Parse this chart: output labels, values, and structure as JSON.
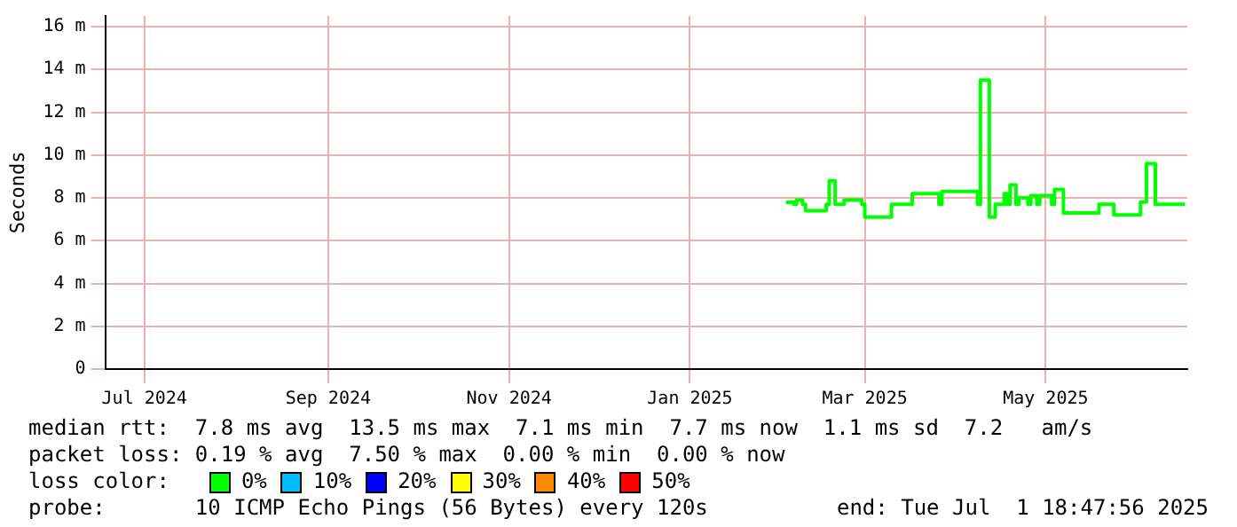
{
  "chart_data": {
    "type": "step",
    "ylabel": "Seconds",
    "legend_title": "loss color:",
    "legend": "bottom",
    "grid": true,
    "marker": "none",
    "xlim": [
      "2024-07-01T18:47",
      "2025-07-01T18:47"
    ],
    "xticks": [
      {
        "value": "2024-07-15",
        "label": "Jul 2024"
      },
      {
        "value": "2024-09-15",
        "label": "Sep 2024"
      },
      {
        "value": "2024-11-15",
        "label": "Nov 2024"
      },
      {
        "value": "2025-01-15",
        "label": "Jan 2025"
      },
      {
        "value": "2025-03-15",
        "label": "Mar 2025"
      },
      {
        "value": "2025-05-15",
        "label": "May 2025"
      }
    ],
    "ylim": [
      0,
      16.5
    ],
    "yticks": [
      0,
      {
        "value": 2,
        "label": "2 m"
      },
      {
        "value": 4,
        "label": "4 m"
      },
      {
        "value": 6,
        "label": "6 m"
      },
      {
        "value": 8,
        "label": "8 m"
      },
      {
        "value": 10,
        "label": "10 m"
      },
      {
        "value": 12,
        "label": "12 m"
      },
      {
        "value": 14,
        "label": "14 m"
      },
      {
        "value": 16,
        "label": "16 m"
      }
    ],
    "series": [
      {
        "name": "0%",
        "color": "#00ff00",
        "x": [
          "2025-02-17",
          "2025-02-19",
          "2025-02-20",
          "2025-02-22",
          "2025-02-23",
          "2025-03-02",
          "2025-03-03",
          "2025-03-05",
          "2025-03-08",
          "2025-03-14",
          "2025-03-15",
          "2025-03-24",
          "2025-03-31",
          "2025-04-09",
          "2025-04-10",
          "2025-04-22",
          "2025-04-23",
          "2025-04-26",
          "2025-04-28",
          "2025-05-01",
          "2025-05-02",
          "2025-05-03",
          "2025-05-05",
          "2025-05-06",
          "2025-05-09",
          "2025-05-10",
          "2025-05-12",
          "2025-05-13",
          "2025-05-17",
          "2025-05-18",
          "2025-05-21",
          "2025-06-02",
          "2025-06-07",
          "2025-06-16",
          "2025-06-18",
          "2025-06-21",
          "2025-06-22",
          "2025-07-01"
        ],
        "values": [
          7.7,
          7.8,
          7.7,
          7.9,
          7.7,
          7.4,
          7.7,
          8.8,
          7.7,
          7.9,
          7.7,
          7.1,
          7.7,
          8.2,
          7.7,
          8.3,
          7.7,
          13.5,
          7.1,
          7.7,
          8.2,
          7.7,
          8.6,
          7.7,
          8.0,
          7.7,
          8.1,
          7.7,
          8.1,
          7.7,
          8.4,
          7.3,
          7.7,
          7.2,
          7.8,
          9.6,
          7.7,
          7.7
        ]
      },
      {
        "name": "10%",
        "color": "#00bbff"
      },
      {
        "name": "20%",
        "color": "#0000ff"
      },
      {
        "name": "30%",
        "color": "#ffff00"
      },
      {
        "name": "40%",
        "color": "#ff8800"
      },
      {
        "name": "50%",
        "color": "#ff0000"
      }
    ],
    "annotations": [
      "median rtt:  7.8 ms avg  13.5 ms max  7.1 ms min  7.7 ms now  1.1 ms sd  7.2   am/s",
      "packet loss: 0.19 % avg  7.50 % max  0.00 % min  0.00 % now",
      "probe:       10 ICMP Echo Pings (56 Bytes) every 120s",
      "end: Tue Jul  1 18:47:56 2025"
    ]
  }
}
